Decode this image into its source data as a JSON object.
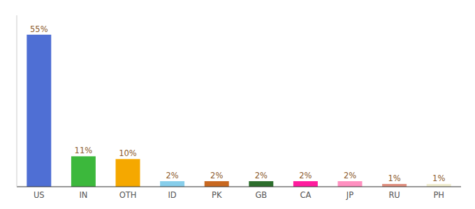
{
  "chart_data": {
    "type": "bar",
    "categories": [
      "US",
      "IN",
      "OTH",
      "ID",
      "PK",
      "GB",
      "CA",
      "JP",
      "RU",
      "PH"
    ],
    "values": [
      55,
      11,
      10,
      2,
      2,
      2,
      2,
      2,
      1,
      1
    ],
    "value_labels": [
      "55%",
      "11%",
      "10%",
      "2%",
      "2%",
      "2%",
      "2%",
      "2%",
      "1%",
      "1%"
    ],
    "colors": [
      "#4F6FD4",
      "#3CB83C",
      "#F5A800",
      "#87CEEB",
      "#C86820",
      "#2D6E2D",
      "#FF1C9E",
      "#FF90C0",
      "#E09080",
      "#F0EDD0"
    ],
    "ylim": [
      0,
      62
    ],
    "data_labels": true,
    "tick_labels": "x",
    "grid": false
  }
}
